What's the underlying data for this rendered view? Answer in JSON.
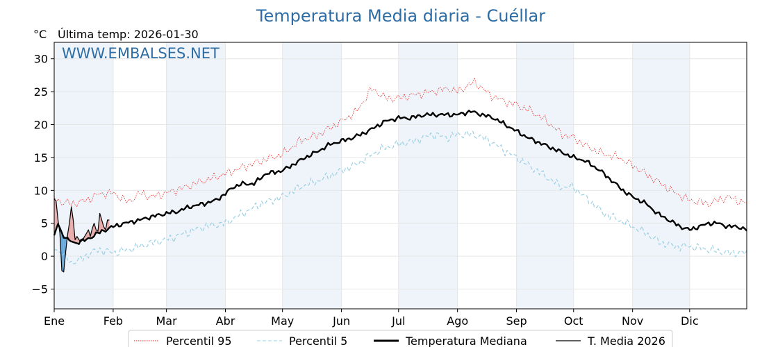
{
  "title": "Temperatura Media diaria - Cuéllar",
  "unit": "°C",
  "subtitle": "Última temp: 2026-01-30",
  "watermark": "WWW.EMBALSES.NET",
  "colors": {
    "title": "#2e6da4",
    "p95": "#e8231f",
    "p5": "#9cd0e3",
    "median": "#000000",
    "current": "#000000",
    "above_fill": "#e8a0a0",
    "below_fill": "#5aa0d6",
    "band": "#eef4fa",
    "grid": "#e6e6e6"
  },
  "legend": [
    {
      "key": "p95",
      "label": "Percentil 95",
      "style": "dotted-red"
    },
    {
      "key": "p5",
      "label": "Percentil 5",
      "style": "dashed-lightblue"
    },
    {
      "key": "median",
      "label": "Temperatura Mediana",
      "style": "thick-black"
    },
    {
      "key": "current",
      "label": "T. Media 2026",
      "style": "thin-black"
    }
  ],
  "chart_data": {
    "type": "line",
    "title": "Temperatura Media diaria - Cuéllar",
    "ylabel": "°C",
    "ylim": [
      -8,
      32.5
    ],
    "xlim": [
      1,
      365
    ],
    "yticks": [
      -5,
      0,
      5,
      10,
      15,
      20,
      25,
      30
    ],
    "grid": true,
    "legend_position": "bottom",
    "months": [
      {
        "label": "Ene",
        "day": 1
      },
      {
        "label": "Feb",
        "day": 32
      },
      {
        "label": "Mar",
        "day": 60
      },
      {
        "label": "Abr",
        "day": 91
      },
      {
        "label": "May",
        "day": 121
      },
      {
        "label": "Jun",
        "day": 152
      },
      {
        "label": "Jul",
        "day": 182
      },
      {
        "label": "Ago",
        "day": 213
      },
      {
        "label": "Sep",
        "day": 244
      },
      {
        "label": "Oct",
        "day": 274
      },
      {
        "label": "Nov",
        "day": 305
      },
      {
        "label": "Dic",
        "day": 335
      }
    ],
    "series": [
      {
        "key": "p95",
        "name": "Percentil 95",
        "x": [
          1,
          5,
          10,
          15,
          20,
          25,
          32,
          40,
          46,
          52,
          60,
          70,
          80,
          91,
          100,
          110,
          121,
          130,
          140,
          152,
          160,
          168,
          175,
          182,
          190,
          200,
          208,
          213,
          222,
          230,
          238,
          244,
          252,
          260,
          268,
          274,
          282,
          290,
          298,
          305,
          312,
          320,
          328,
          335,
          345,
          355,
          365
        ],
        "y": [
          8.8,
          8.2,
          8.0,
          8.2,
          8.8,
          9.5,
          9.6,
          8.2,
          9.6,
          9.0,
          9.6,
          10.5,
          11.5,
          12.5,
          13.5,
          14.5,
          15.5,
          17.5,
          18.5,
          20.5,
          22.0,
          25.5,
          24.0,
          24.0,
          24.5,
          25.0,
          25.5,
          25.0,
          26.5,
          24.5,
          23.5,
          23.0,
          22.0,
          20.5,
          18.5,
          18.0,
          16.5,
          15.5,
          15.0,
          13.8,
          12.5,
          11.0,
          9.5,
          8.5,
          8.0,
          9.0,
          8.0
        ]
      },
      {
        "key": "p5",
        "name": "Percentil 5",
        "x": [
          1,
          5,
          10,
          15,
          20,
          25,
          32,
          40,
          46,
          52,
          60,
          70,
          80,
          91,
          100,
          110,
          121,
          130,
          140,
          152,
          160,
          168,
          175,
          182,
          190,
          200,
          208,
          213,
          222,
          230,
          238,
          244,
          252,
          260,
          268,
          274,
          282,
          290,
          298,
          305,
          312,
          320,
          328,
          335,
          345,
          355,
          365
        ],
        "y": [
          1.2,
          0.5,
          -1.0,
          -0.5,
          0.5,
          1.0,
          0.5,
          1.0,
          1.5,
          2.0,
          2.5,
          3.5,
          4.5,
          5.0,
          6.5,
          8.0,
          9.0,
          10.5,
          11.5,
          13.0,
          14.0,
          15.5,
          16.5,
          17.0,
          17.5,
          18.5,
          18.0,
          18.5,
          18.5,
          17.5,
          16.0,
          15.0,
          13.5,
          12.0,
          10.5,
          10.5,
          8.5,
          6.5,
          5.5,
          4.5,
          3.5,
          2.0,
          1.5,
          1.5,
          1.0,
          0.5,
          0.5
        ]
      },
      {
        "key": "median",
        "name": "Temperatura Mediana",
        "x": [
          1,
          3,
          5,
          8,
          12,
          18,
          24,
          28,
          32,
          38,
          46,
          52,
          60,
          66,
          72,
          80,
          86,
          91,
          95,
          100,
          106,
          112,
          121,
          127,
          133,
          140,
          146,
          152,
          158,
          166,
          175,
          182,
          188,
          196,
          204,
          213,
          220,
          226,
          232,
          238,
          244,
          250,
          258,
          266,
          274,
          280,
          288,
          294,
          300,
          305,
          312,
          318,
          324,
          330,
          335,
          340,
          345,
          350,
          355,
          360,
          365
        ],
        "y": [
          3.0,
          5.0,
          3.5,
          2.5,
          2.0,
          2.5,
          3.5,
          4.0,
          4.5,
          5.0,
          5.5,
          6.0,
          6.5,
          6.8,
          7.5,
          8.0,
          8.5,
          9.5,
          10.5,
          11.0,
          11.0,
          12.5,
          13.0,
          14.0,
          15.0,
          16.0,
          17.0,
          17.5,
          18.0,
          19.0,
          20.5,
          21.0,
          21.0,
          21.5,
          21.5,
          21.5,
          22.0,
          21.5,
          21.0,
          20.0,
          19.0,
          18.0,
          17.0,
          16.0,
          15.0,
          14.5,
          13.0,
          11.5,
          10.0,
          9.0,
          8.0,
          6.5,
          5.5,
          4.5,
          4.0,
          4.5,
          5.0,
          5.0,
          4.5,
          4.5,
          4.0
        ]
      },
      {
        "key": "current",
        "name": "T. Media 2026",
        "x": [
          1,
          2,
          3,
          4,
          5,
          6,
          7,
          8,
          9,
          10,
          11,
          12,
          13,
          14,
          15,
          16,
          17,
          18,
          19,
          20,
          21,
          22,
          23,
          24,
          25,
          26,
          27,
          28,
          29,
          30
        ],
        "y": [
          8.7,
          8.4,
          5.5,
          3.5,
          -2.2,
          -2.4,
          0.5,
          3.2,
          5.0,
          7.5,
          5.5,
          2.5,
          3.0,
          2.5,
          2.2,
          2.5,
          3.0,
          3.5,
          4.0,
          3.0,
          4.2,
          5.0,
          4.0,
          3.8,
          6.5,
          5.5,
          4.5,
          4.0,
          5.5,
          5.5
        ]
      }
    ]
  }
}
